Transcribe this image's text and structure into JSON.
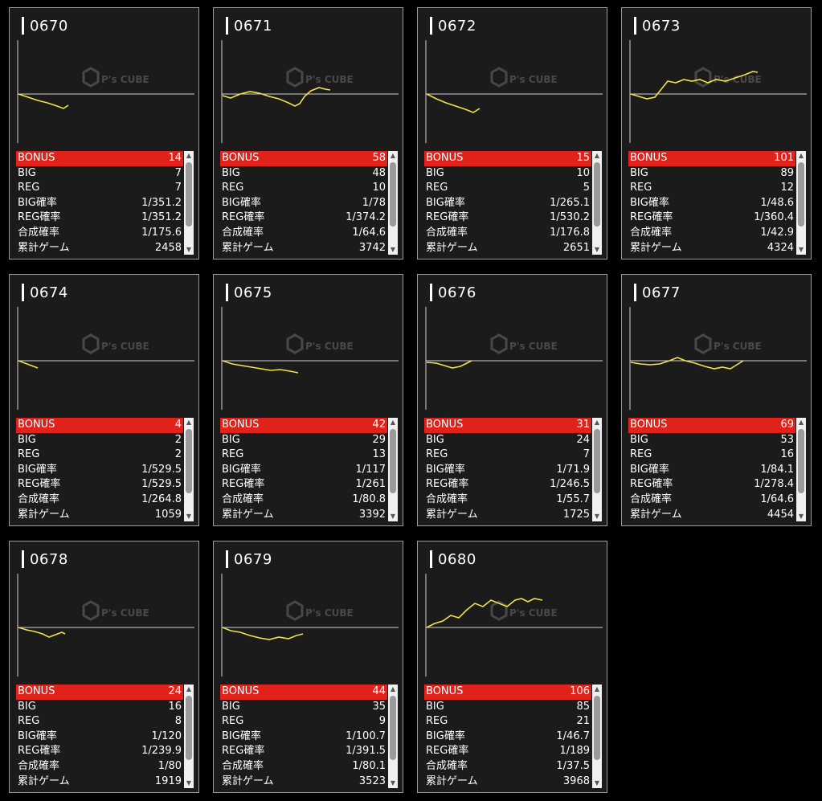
{
  "labels": {
    "bonus": "BONUS",
    "big": "BIG",
    "reg": "REG",
    "big_rate": "BIG確率",
    "reg_rate": "REG確率",
    "combined_rate": "合成確率",
    "total_games": "累計ゲーム"
  },
  "watermark": {
    "brand": "P's CUBE"
  },
  "colors": {
    "graph_line": "#f2e24a",
    "bonus_bg": "#e0221b",
    "axis": "#d0d0d0"
  },
  "machines": [
    {
      "id": "0670",
      "bonus": "14",
      "big": "7",
      "reg": "7",
      "big_rate": "1/351.2",
      "reg_rate": "1/351.2",
      "combined_rate": "1/175.6",
      "total_games": "2458",
      "graph": [
        [
          0,
          0
        ],
        [
          12,
          4
        ],
        [
          24,
          8
        ],
        [
          36,
          11
        ],
        [
          48,
          15
        ],
        [
          56,
          18
        ],
        [
          62,
          14
        ]
      ]
    },
    {
      "id": "0671",
      "bonus": "58",
      "big": "48",
      "reg": "10",
      "big_rate": "1/78",
      "reg_rate": "1/374.2",
      "combined_rate": "1/64.6",
      "total_games": "3742",
      "graph": [
        [
          0,
          2
        ],
        [
          10,
          5
        ],
        [
          22,
          0
        ],
        [
          34,
          -3
        ],
        [
          46,
          -1
        ],
        [
          58,
          3
        ],
        [
          70,
          6
        ],
        [
          82,
          11
        ],
        [
          90,
          15
        ],
        [
          96,
          12
        ],
        [
          102,
          3
        ],
        [
          110,
          -4
        ],
        [
          120,
          -8
        ],
        [
          128,
          -6
        ],
        [
          134,
          -5
        ]
      ]
    },
    {
      "id": "0672",
      "bonus": "15",
      "big": "10",
      "reg": "5",
      "big_rate": "1/265.1",
      "reg_rate": "1/530.2",
      "combined_rate": "1/176.8",
      "total_games": "2651",
      "graph": [
        [
          0,
          0
        ],
        [
          12,
          6
        ],
        [
          24,
          11
        ],
        [
          36,
          15
        ],
        [
          48,
          19
        ],
        [
          58,
          23
        ],
        [
          66,
          18
        ]
      ]
    },
    {
      "id": "0673",
      "bonus": "101",
      "big": "89",
      "reg": "12",
      "big_rate": "1/48.6",
      "reg_rate": "1/360.4",
      "combined_rate": "1/42.9",
      "total_games": "4324",
      "graph": [
        [
          0,
          0
        ],
        [
          10,
          3
        ],
        [
          20,
          6
        ],
        [
          30,
          4
        ],
        [
          38,
          -6
        ],
        [
          46,
          -16
        ],
        [
          56,
          -14
        ],
        [
          66,
          -18
        ],
        [
          76,
          -16
        ],
        [
          86,
          -18
        ],
        [
          96,
          -14
        ],
        [
          106,
          -18
        ],
        [
          118,
          -16
        ],
        [
          130,
          -20
        ],
        [
          142,
          -24
        ],
        [
          152,
          -28
        ],
        [
          158,
          -27
        ]
      ]
    },
    {
      "id": "0674",
      "bonus": "4",
      "big": "2",
      "reg": "2",
      "big_rate": "1/529.5",
      "reg_rate": "1/529.5",
      "combined_rate": "1/264.8",
      "total_games": "1059",
      "graph": [
        [
          0,
          0
        ],
        [
          8,
          3
        ],
        [
          16,
          6
        ],
        [
          24,
          9
        ]
      ]
    },
    {
      "id": "0675",
      "bonus": "42",
      "big": "29",
      "reg": "13",
      "big_rate": "1/117",
      "reg_rate": "1/261",
      "combined_rate": "1/80.8",
      "total_games": "3392",
      "graph": [
        [
          0,
          0
        ],
        [
          12,
          4
        ],
        [
          24,
          6
        ],
        [
          36,
          8
        ],
        [
          48,
          10
        ],
        [
          60,
          12
        ],
        [
          72,
          11
        ],
        [
          84,
          13
        ],
        [
          94,
          15
        ]
      ]
    },
    {
      "id": "0676",
      "bonus": "31",
      "big": "24",
      "reg": "7",
      "big_rate": "1/71.9",
      "reg_rate": "1/246.5",
      "combined_rate": "1/55.7",
      "total_games": "1725",
      "graph": [
        [
          0,
          2
        ],
        [
          12,
          3
        ],
        [
          22,
          6
        ],
        [
          32,
          9
        ],
        [
          42,
          7
        ],
        [
          50,
          3
        ],
        [
          56,
          0
        ]
      ]
    },
    {
      "id": "0677",
      "bonus": "69",
      "big": "53",
      "reg": "16",
      "big_rate": "1/84.1",
      "reg_rate": "1/278.4",
      "combined_rate": "1/64.6",
      "total_games": "4454",
      "graph": [
        [
          0,
          2
        ],
        [
          12,
          4
        ],
        [
          24,
          5
        ],
        [
          36,
          4
        ],
        [
          48,
          0
        ],
        [
          58,
          -4
        ],
        [
          68,
          0
        ],
        [
          80,
          3
        ],
        [
          92,
          7
        ],
        [
          104,
          10
        ],
        [
          114,
          8
        ],
        [
          124,
          10
        ],
        [
          132,
          5
        ],
        [
          140,
          0
        ]
      ]
    },
    {
      "id": "0678",
      "bonus": "24",
      "big": "16",
      "reg": "8",
      "big_rate": "1/120",
      "reg_rate": "1/239.9",
      "combined_rate": "1/80",
      "total_games": "1919",
      "graph": [
        [
          0,
          0
        ],
        [
          10,
          3
        ],
        [
          20,
          5
        ],
        [
          30,
          8
        ],
        [
          38,
          12
        ],
        [
          46,
          9
        ],
        [
          54,
          6
        ],
        [
          58,
          8
        ]
      ]
    },
    {
      "id": "0679",
      "bonus": "44",
      "big": "35",
      "reg": "9",
      "big_rate": "1/100.7",
      "reg_rate": "1/391.5",
      "combined_rate": "1/80.1",
      "total_games": "3523",
      "graph": [
        [
          0,
          0
        ],
        [
          10,
          4
        ],
        [
          22,
          6
        ],
        [
          34,
          10
        ],
        [
          46,
          13
        ],
        [
          58,
          15
        ],
        [
          70,
          12
        ],
        [
          82,
          14
        ],
        [
          92,
          10
        ],
        [
          100,
          8
        ]
      ]
    },
    {
      "id": "0680",
      "bonus": "106",
      "big": "85",
      "reg": "21",
      "big_rate": "1/46.7",
      "reg_rate": "1/189",
      "combined_rate": "1/37.5",
      "total_games": "3968",
      "graph": [
        [
          0,
          0
        ],
        [
          10,
          -5
        ],
        [
          20,
          -8
        ],
        [
          30,
          -15
        ],
        [
          40,
          -12
        ],
        [
          50,
          -22
        ],
        [
          60,
          -30
        ],
        [
          70,
          -26
        ],
        [
          80,
          -34
        ],
        [
          90,
          -30
        ],
        [
          100,
          -26
        ],
        [
          110,
          -34
        ],
        [
          118,
          -36
        ],
        [
          126,
          -32
        ],
        [
          134,
          -36
        ],
        [
          144,
          -34
        ]
      ]
    }
  ]
}
